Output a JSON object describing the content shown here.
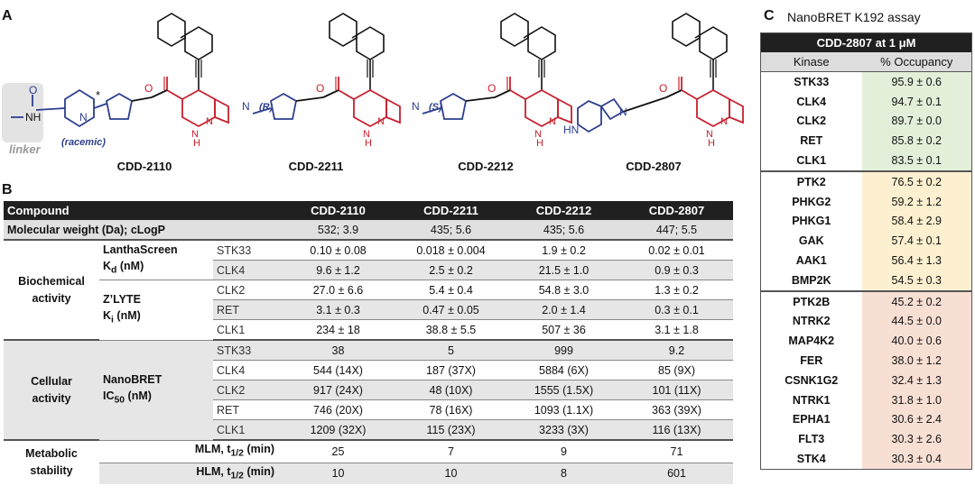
{
  "panels": {
    "a": "A",
    "b": "B",
    "c": "C"
  },
  "structures": {
    "linker_label": "linker",
    "racemic_label": "(racemic)",
    "compounds": [
      "CDD-2110",
      "CDD-2211",
      "CDD-2212",
      "CDD-2807"
    ],
    "atom_labels": {
      "nh": "NH",
      "n": "N",
      "o": "O",
      "h": "H",
      "hn": "HN",
      "star": "*",
      "r": "(R)",
      "s": "(S)"
    }
  },
  "table_b": {
    "header": [
      "Compound",
      "CDD-2110",
      "CDD-2211",
      "CDD-2212",
      "CDD-2807"
    ],
    "mw_row": {
      "label": "Molecular weight (Da); cLogP",
      "values": [
        "532; 3.9",
        "435; 5.6",
        "435; 5.6",
        "447; 5.5"
      ]
    },
    "sections": {
      "biochemical": {
        "line1": "Biochemical",
        "line2": "activity"
      },
      "cellular": {
        "line1": "Cellular",
        "line2": "activity"
      },
      "metabolic": {
        "line1": "Metabolic",
        "line2": "stability"
      }
    },
    "assays": {
      "lanthascreen": {
        "line1": "LanthaScreen",
        "kd": "K",
        "kd_sub": "d",
        "kd_unit": " (nM)"
      },
      "zlyte": {
        "line1": "Z’LYTE",
        "ki": "K",
        "ki_sub": "i",
        "ki_unit": " (nM)"
      },
      "nanobret": {
        "line1": "NanoBRET",
        "ic": "IC",
        "ic_sub": "50",
        "ic_unit": " (nM)"
      },
      "mlm": {
        "pre": "MLM, t",
        "sub": "1/2",
        "post": " (min)"
      },
      "hlm": {
        "pre": "HLM, t",
        "sub": "1/2",
        "post": " (min)"
      }
    },
    "rows": {
      "b1": {
        "target": "STK33",
        "values": [
          "0.10 ± 0.08",
          "0.018 ± 0.004",
          "1.9 ± 0.2",
          "0.02 ± 0.01"
        ]
      },
      "b2": {
        "target": "CLK4",
        "values": [
          "9.6 ± 1.2",
          "2.5 ± 0.2",
          "21.5 ± 1.0",
          "0.9 ± 0.3"
        ]
      },
      "b3": {
        "target": "CLK2",
        "values": [
          "27.0 ± 6.6",
          "5.4 ± 0.4",
          "54.8 ± 3.0",
          "1.3 ± 0.2"
        ]
      },
      "b4": {
        "target": "RET",
        "values": [
          "3.1 ± 0.3",
          "0.47 ± 0.05",
          "2.0 ± 1.4",
          "0.3 ± 0.1"
        ]
      },
      "b5": {
        "target": "CLK1",
        "values": [
          "234 ± 18",
          "38.8 ± 5.5",
          "507 ± 36",
          "3.1 ± 1.8"
        ]
      },
      "c1": {
        "target": "STK33",
        "values": [
          "38",
          "5",
          "999",
          "9.2"
        ]
      },
      "c2": {
        "target": "CLK4",
        "values": [
          "544 (14X)",
          "187 (37X)",
          "5884 (6X)",
          "85 (9X)"
        ]
      },
      "c3": {
        "target": "CLK2",
        "values": [
          "917 (24X)",
          "48 (10X)",
          "1555 (1.5X)",
          "101 (11X)"
        ]
      },
      "c4": {
        "target": "RET",
        "values": [
          "746 (20X)",
          "78 (16X)",
          "1093 (1.1X)",
          "363 (39X)"
        ]
      },
      "c5": {
        "target": "CLK1",
        "values": [
          "1209 (32X)",
          "115 (23X)",
          "3233 (3X)",
          "116 (13X)"
        ]
      },
      "m1": {
        "values": [
          "25",
          "7",
          "9",
          "71"
        ]
      },
      "m2": {
        "values": [
          "10",
          "10",
          "8",
          "601"
        ]
      }
    }
  },
  "table_c": {
    "title": "NanoBRET K192 assay",
    "caption": "CDD-2807 at 1 μM",
    "col_kinase": "Kinase",
    "col_occupancy": "% Occupancy",
    "rows": [
      {
        "kinase": "STK33",
        "occ": "95.9 ± 0.6"
      },
      {
        "kinase": "CLK4",
        "occ": "94.7 ± 0.1"
      },
      {
        "kinase": "CLK2",
        "occ": "89.7 ± 0.0"
      },
      {
        "kinase": "RET",
        "occ": "85.8 ± 0.2"
      },
      {
        "kinase": "CLK1",
        "occ": "83.5 ± 0.1"
      },
      {
        "kinase": "PTK2",
        "occ": "76.5 ± 0.2"
      },
      {
        "kinase": "PHKG2",
        "occ": "59.2 ± 1.2"
      },
      {
        "kinase": "PHKG1",
        "occ": "58.4 ± 2.9"
      },
      {
        "kinase": "GAK",
        "occ": "57.4 ± 0.1"
      },
      {
        "kinase": "AAK1",
        "occ": "56.4 ± 1.3"
      },
      {
        "kinase": "BMP2K",
        "occ": "54.5 ± 0.3"
      },
      {
        "kinase": "PTK2B",
        "occ": "45.2 ± 0.2"
      },
      {
        "kinase": "NTRK2",
        "occ": "44.5 ± 0.0"
      },
      {
        "kinase": "MAP4K2",
        "occ": "40.0 ± 0.6"
      },
      {
        "kinase": "FER",
        "occ": "38.0 ± 1.2"
      },
      {
        "kinase": "CSNK1G2",
        "occ": "32.4 ± 1.3"
      },
      {
        "kinase": "NTRK1",
        "occ": "31.8 ± 1.0"
      },
      {
        "kinase": "EPHA1",
        "occ": "30.6 ± 2.4"
      },
      {
        "kinase": "FLT3",
        "occ": "30.3 ± 2.6"
      },
      {
        "kinase": "STK4",
        "occ": "30.3 ± 0.4"
      }
    ]
  },
  "colors": {
    "blue": "#2d3e8e",
    "red": "#c8202e",
    "green": "#e3efd9",
    "yellow": "#fdf0d0",
    "salmon": "#f8dfd4",
    "header": "#202020"
  }
}
